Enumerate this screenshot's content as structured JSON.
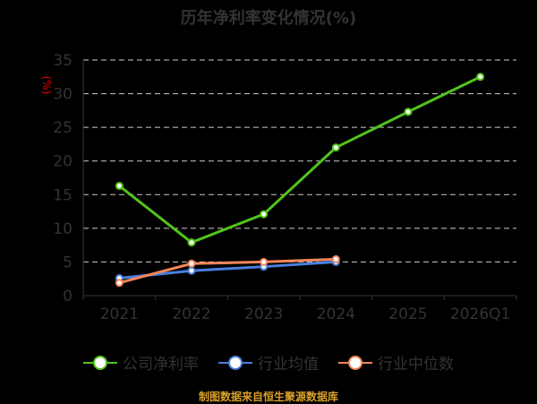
{
  "chart_data": {
    "type": "line",
    "title": "历年净利率变化情况(%)",
    "ylabel": "(%)",
    "xlabel": "",
    "categories": [
      "2021",
      "2022",
      "2023",
      "2024",
      "2025",
      "2026Q1"
    ],
    "ylim": [
      0,
      35
    ],
    "yticks": [
      0,
      5,
      10,
      15,
      20,
      25,
      30,
      35
    ],
    "grid": true,
    "legend_position": "bottom",
    "series": [
      {
        "name": "公司净利率",
        "color": "#52c41a",
        "values": [
          16.3,
          7.9,
          12.1,
          22.0,
          27.3,
          32.5
        ]
      },
      {
        "name": "行业均值",
        "color": "#4a7fe0",
        "values": [
          2.6,
          3.7,
          4.3,
          5.0,
          null,
          null
        ]
      },
      {
        "name": "行业中位数",
        "color": "#f4865a",
        "values": [
          1.9,
          4.75,
          5.0,
          5.4,
          null,
          null
        ]
      }
    ]
  },
  "source": "制图数据来自恒生聚源数据库"
}
